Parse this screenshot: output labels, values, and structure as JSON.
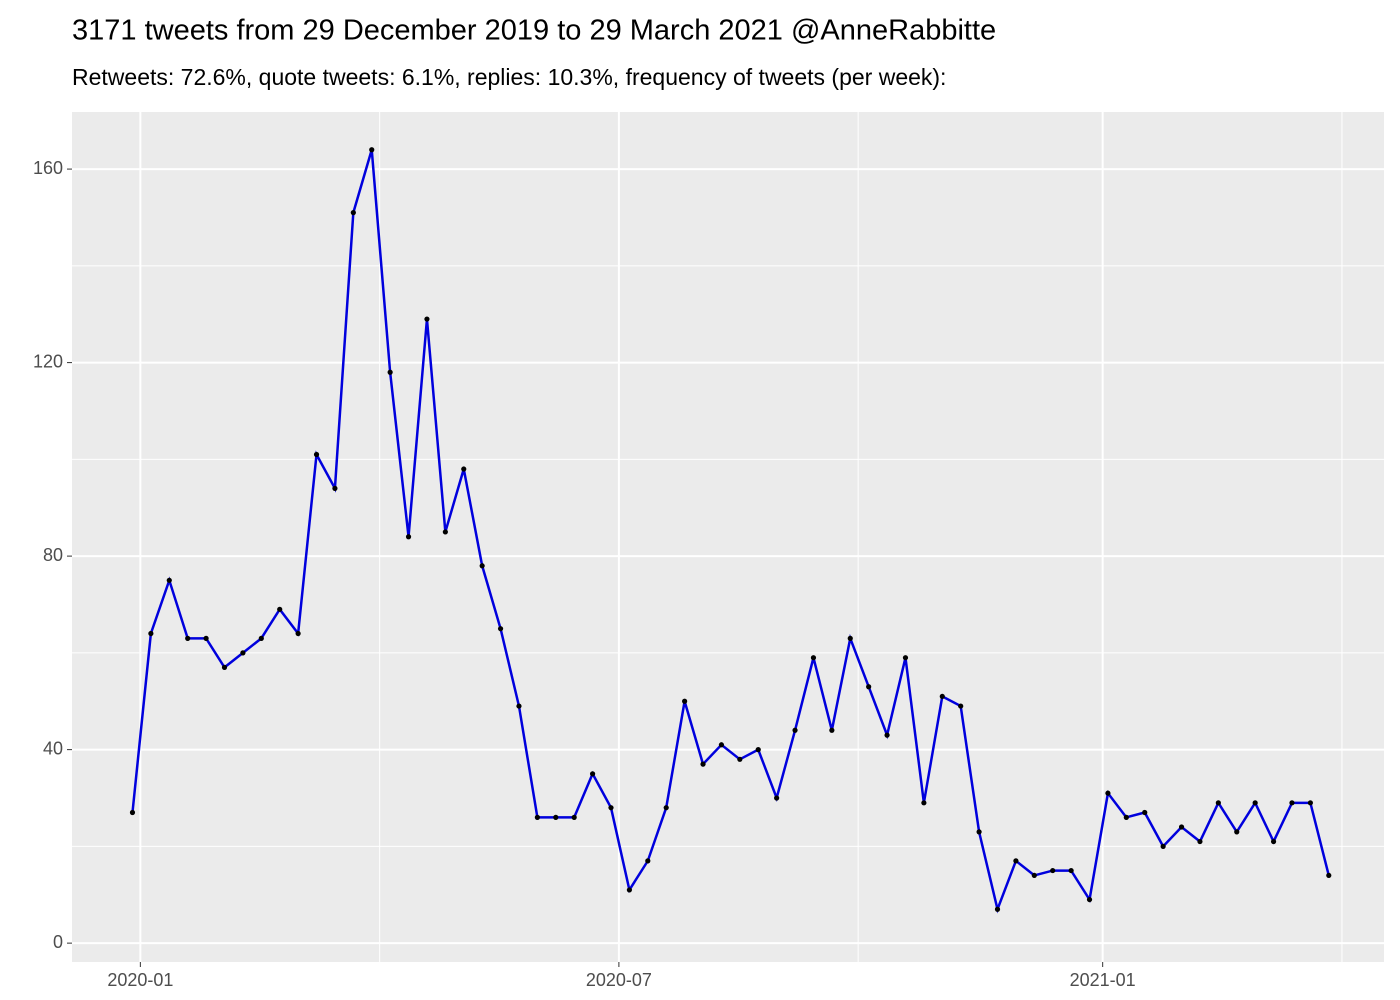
{
  "chart_data": {
    "type": "line",
    "title": "3171 tweets from 29 December 2019 to 29 March 2021 @AnneRabbitte",
    "subtitle": "Retweets: 72.6%, quote tweets: 6.1%, replies: 10.3%, frequency of tweets (per week):",
    "x": [
      "2019-12-29",
      "2020-01-05",
      "2020-01-12",
      "2020-01-19",
      "2020-01-26",
      "2020-02-02",
      "2020-02-09",
      "2020-02-16",
      "2020-02-23",
      "2020-03-01",
      "2020-03-08",
      "2020-03-15",
      "2020-03-22",
      "2020-03-29",
      "2020-04-05",
      "2020-04-12",
      "2020-04-19",
      "2020-04-26",
      "2020-05-03",
      "2020-05-10",
      "2020-05-17",
      "2020-05-24",
      "2020-05-31",
      "2020-06-07",
      "2020-06-14",
      "2020-06-21",
      "2020-06-28",
      "2020-07-05",
      "2020-07-12",
      "2020-07-19",
      "2020-07-26",
      "2020-08-02",
      "2020-08-09",
      "2020-08-16",
      "2020-08-23",
      "2020-08-30",
      "2020-09-06",
      "2020-09-13",
      "2020-09-20",
      "2020-09-27",
      "2020-10-04",
      "2020-10-11",
      "2020-10-18",
      "2020-10-25",
      "2020-11-01",
      "2020-11-08",
      "2020-11-15",
      "2020-11-22",
      "2020-11-29",
      "2020-12-06",
      "2020-12-13",
      "2020-12-20",
      "2020-12-27",
      "2021-01-03",
      "2021-01-10",
      "2021-01-17",
      "2021-01-24",
      "2021-01-31",
      "2021-02-07",
      "2021-02-14",
      "2021-02-21",
      "2021-02-28",
      "2021-03-07",
      "2021-03-14",
      "2021-03-21",
      "2021-03-28"
    ],
    "series": [
      {
        "color": "#0000dd",
        "values": [
          27,
          64,
          75,
          63,
          63,
          57,
          60,
          63,
          69,
          64,
          101,
          94,
          151,
          164,
          118,
          84,
          129,
          85,
          98,
          78,
          65,
          49,
          26,
          26,
          26,
          35,
          28,
          11,
          17,
          28,
          50,
          37,
          41,
          38,
          40,
          30,
          44,
          59,
          44,
          63,
          53,
          43,
          59,
          29,
          51,
          49,
          23,
          7,
          17,
          14,
          15,
          15,
          9,
          31,
          26,
          27,
          20,
          24,
          21,
          29,
          23,
          29,
          21,
          29,
          29,
          14
        ]
      }
    ],
    "point_color": "#000000",
    "xlim": [
      "2019-12-06",
      "2021-04-18"
    ],
    "xticks": [
      "2020-01",
      "2020-07",
      "2021-01"
    ],
    "ylim": [
      -3.9,
      171.8
    ],
    "yticks": [
      0,
      40,
      80,
      120,
      160
    ],
    "grid": true
  }
}
